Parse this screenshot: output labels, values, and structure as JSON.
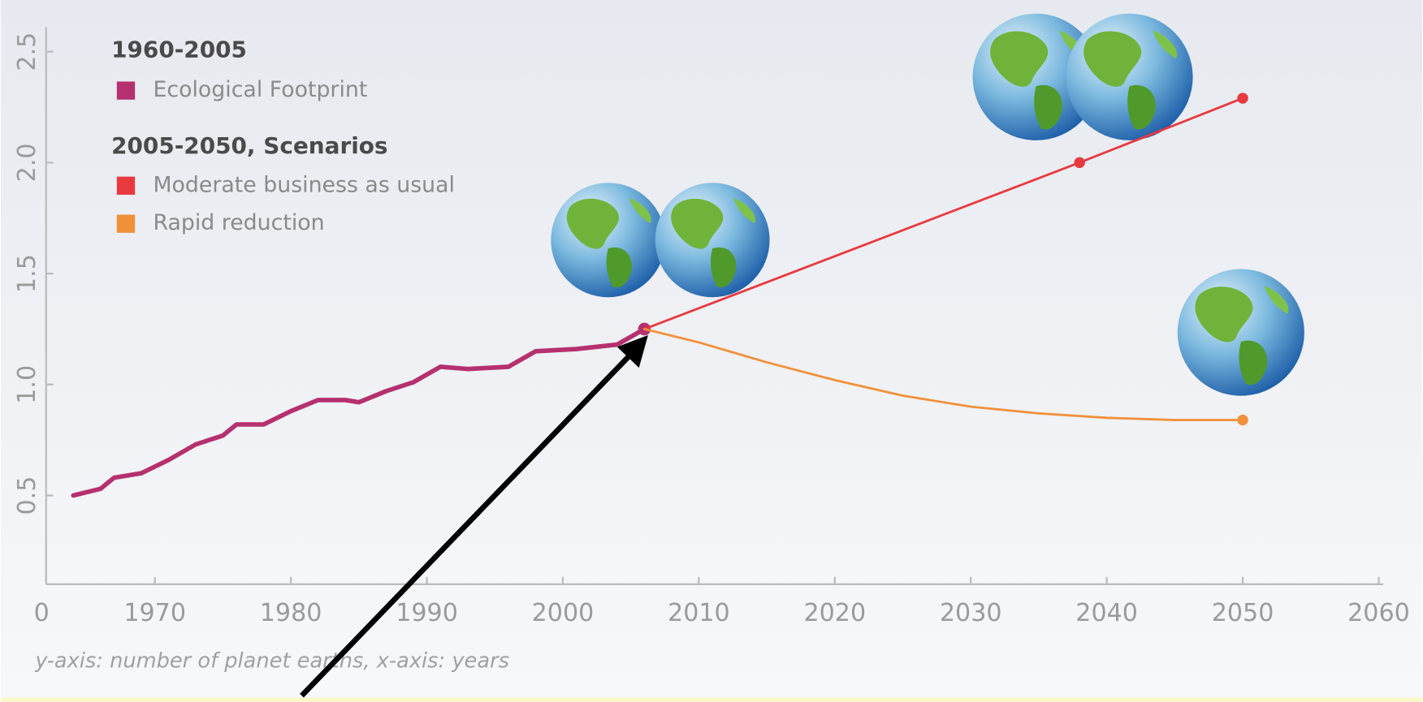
{
  "chart_data": {
    "type": "line",
    "legend_headings": [
      "1960-2005",
      "2005-2050, Scenarios"
    ],
    "caption": "y-axis: number of planet earths, x-axis: years",
    "origin_label": "0",
    "xlim": [
      1962,
      2060
    ],
    "xticks": [
      1970,
      1980,
      1990,
      2000,
      2010,
      2020,
      2030,
      2040,
      2050,
      2060
    ],
    "ylim": [
      0.1,
      2.6
    ],
    "yticks": [
      0.5,
      1.0,
      1.5,
      2.0,
      2.5
    ],
    "series": [
      {
        "name": "Ecological Footprint",
        "color": "#b5306e",
        "x": [
          1964,
          1966,
          1967,
          1969,
          1971,
          1973,
          1975,
          1976,
          1978,
          1980,
          1982,
          1984,
          1985,
          1987,
          1989,
          1991,
          1993,
          1996,
          1998,
          2001,
          2004,
          2006
        ],
        "values": [
          0.5,
          0.53,
          0.58,
          0.6,
          0.66,
          0.73,
          0.77,
          0.82,
          0.82,
          0.88,
          0.93,
          0.93,
          0.92,
          0.97,
          1.01,
          1.08,
          1.07,
          1.08,
          1.15,
          1.16,
          1.18,
          1.25
        ]
      },
      {
        "name": "Moderate business as usual",
        "color": "#e8393f",
        "x": [
          2006,
          2038,
          2050
        ],
        "values": [
          1.25,
          2.0,
          2.29
        ]
      },
      {
        "name": "Rapid reduction",
        "color": "#f0913a",
        "x": [
          2006,
          2010,
          2015,
          2020,
          2025,
          2030,
          2035,
          2040,
          2045,
          2050
        ],
        "values": [
          1.25,
          1.19,
          1.1,
          1.02,
          0.95,
          0.9,
          0.87,
          0.85,
          0.84,
          0.84
        ]
      }
    ]
  }
}
